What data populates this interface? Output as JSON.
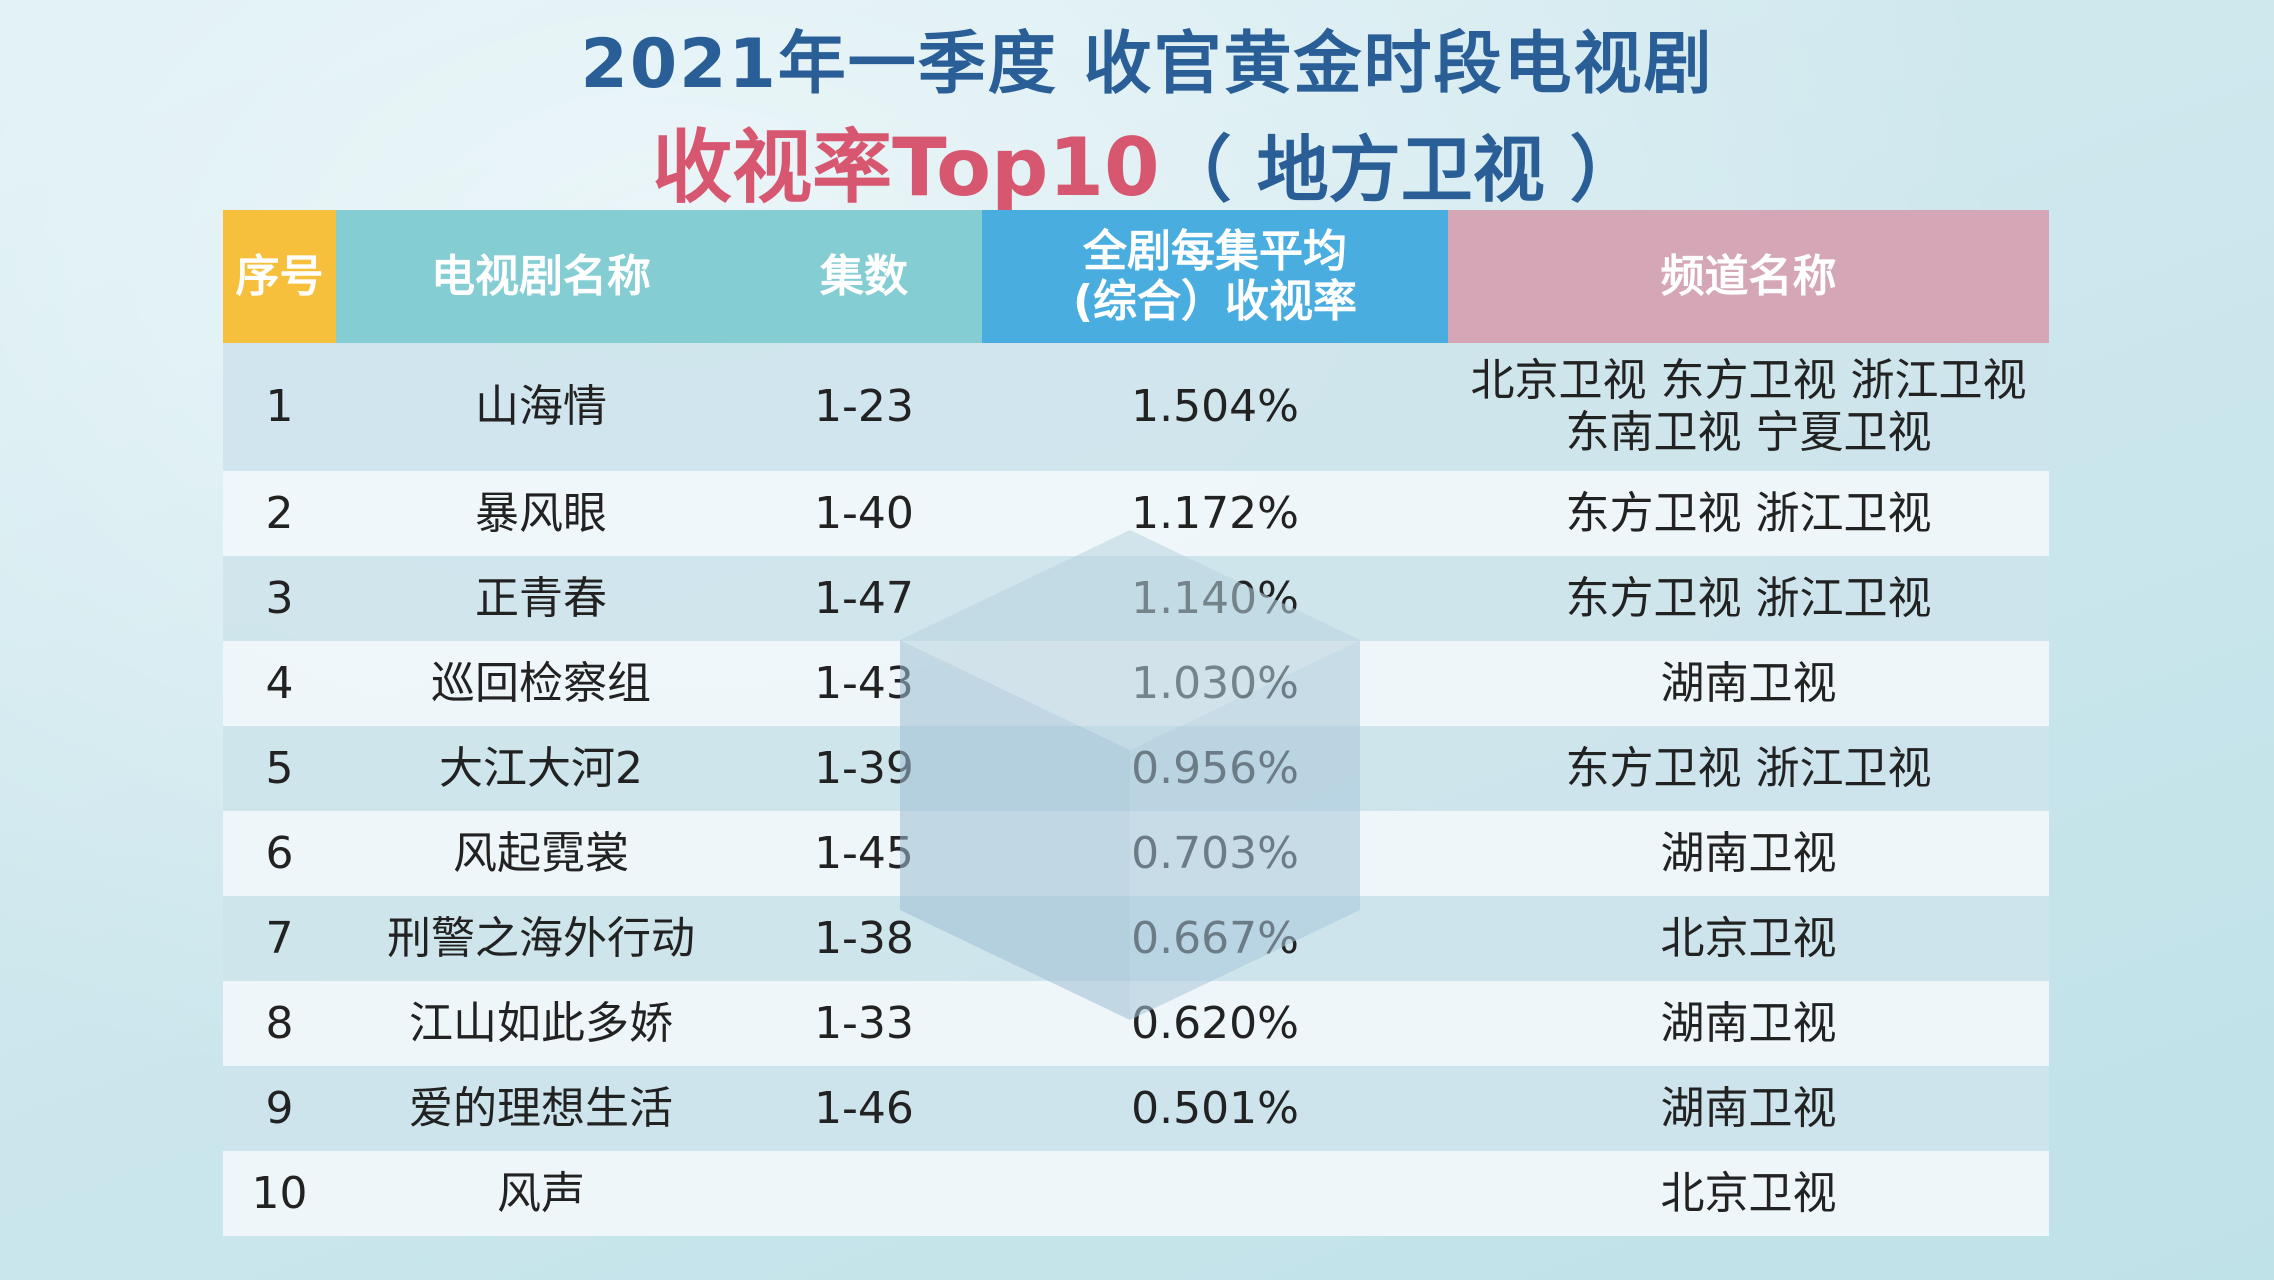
{
  "title": {
    "line1": "2021年一季度 收官黄金时段电视剧",
    "line2_main": "收视率Top10",
    "line2_sub": "（ 地方卫视 ）"
  },
  "colors": {
    "header_no": "#f6bf3c",
    "header_name": "#84cdd3",
    "header_rate": "#49addf",
    "header_channel": "#d5a6b5",
    "title_blue": "#2a5e96",
    "title_pink": "#d85770"
  },
  "chart_data": {
    "type": "table",
    "columns": [
      "序号",
      "电视剧名称",
      "集数",
      "全剧每集平均（综合）收视率",
      "频道名称"
    ],
    "header": {
      "no": "序号",
      "name": "电视剧名称",
      "episodes": "集数",
      "rate_line1": "全剧每集平均",
      "rate_line2": "(综合）收视率",
      "channel": "频道名称"
    },
    "rows": [
      {
        "no": "1",
        "name": "山海情",
        "episodes": "1-23",
        "rate": "1.504%",
        "channel": "北京卫视 东方卫视 浙江卫视",
        "channel2": "东南卫视 宁夏卫视"
      },
      {
        "no": "2",
        "name": "暴风眼",
        "episodes": "1-40",
        "rate": "1.172%",
        "channel": "东方卫视 浙江卫视"
      },
      {
        "no": "3",
        "name": "正青春",
        "episodes": "1-47",
        "rate": "1.140%",
        "channel": "东方卫视 浙江卫视"
      },
      {
        "no": "4",
        "name": "巡回检察组",
        "episodes": "1-43",
        "rate": "1.030%",
        "channel": "湖南卫视"
      },
      {
        "no": "5",
        "name": "大江大河2",
        "episodes": "1-39",
        "rate": "0.956%",
        "channel": "东方卫视 浙江卫视"
      },
      {
        "no": "6",
        "name": "风起霓裳",
        "episodes": "1-45",
        "rate": "0.703%",
        "channel": "湖南卫视"
      },
      {
        "no": "7",
        "name": "刑警之海外行动",
        "episodes": "1-38",
        "rate": "0.667%",
        "channel": "北京卫视"
      },
      {
        "no": "8",
        "name": "江山如此多娇",
        "episodes": "1-33",
        "rate": "0.620%",
        "channel": "湖南卫视"
      },
      {
        "no": "9",
        "name": "爱的理想生活",
        "episodes": "1-46",
        "rate": "0.501%",
        "channel": "湖南卫视"
      },
      {
        "no": "10",
        "name": "风声",
        "episodes": "",
        "rate": "",
        "channel": "北京卫视"
      }
    ]
  }
}
